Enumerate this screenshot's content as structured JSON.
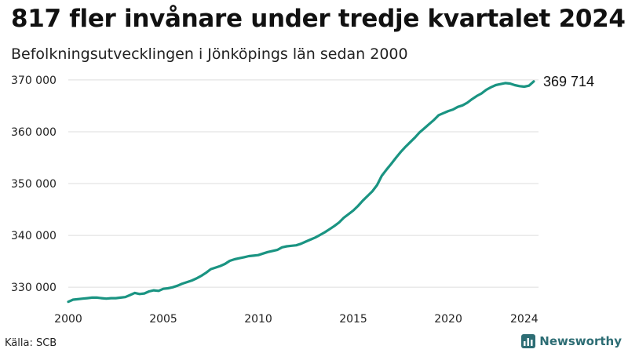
{
  "title": "817 fler invånare under tredje kvartalet 2024",
  "subtitle": "Befolkningsutvecklingen i Jönköpings län sedan 2000",
  "source": "Källa: SCB",
  "brand": "Newsworthy",
  "chart_data": {
    "type": "line",
    "series_color": "#1a9482",
    "xlim": [
      2000,
      2024.75
    ],
    "ylim": [
      327000,
      371500
    ],
    "xticks": [
      2000,
      2005,
      2010,
      2015,
      2020,
      2024
    ],
    "yticks": [
      330000,
      340000,
      350000,
      360000,
      370000
    ],
    "ytick_labels": [
      "330 000",
      "340 000",
      "350 000",
      "360 000",
      "370 000"
    ],
    "grid": "horizontal",
    "end_label": "369 714",
    "series": [
      {
        "x": [
          2000.0,
          2000.25,
          2000.5,
          2000.75,
          2001.0,
          2001.25,
          2001.5,
          2001.75,
          2002.0,
          2002.25,
          2002.5,
          2002.75,
          2003.0,
          2003.25,
          2003.5,
          2003.75,
          2004.0,
          2004.25,
          2004.5,
          2004.75,
          2005.0,
          2005.25,
          2005.5,
          2005.75,
          2006.0,
          2006.25,
          2006.5,
          2006.75,
          2007.0,
          2007.25,
          2007.5,
          2007.75,
          2008.0,
          2008.25,
          2008.5,
          2008.75,
          2009.0,
          2009.25,
          2009.5,
          2009.75,
          2010.0,
          2010.25,
          2010.5,
          2010.75,
          2011.0,
          2011.25,
          2011.5,
          2011.75,
          2012.0,
          2012.25,
          2012.5,
          2012.75,
          2013.0,
          2013.25,
          2013.5,
          2013.75,
          2014.0,
          2014.25,
          2014.5,
          2014.75,
          2015.0,
          2015.25,
          2015.5,
          2015.75,
          2016.0,
          2016.25,
          2016.5,
          2016.75,
          2017.0,
          2017.25,
          2017.5,
          2017.75,
          2018.0,
          2018.25,
          2018.5,
          2018.75,
          2019.0,
          2019.25,
          2019.5,
          2019.75,
          2020.0,
          2020.25,
          2020.5,
          2020.75,
          2021.0,
          2021.25,
          2021.5,
          2021.75,
          2022.0,
          2022.25,
          2022.5,
          2022.75,
          2023.0,
          2023.25,
          2023.5,
          2023.75,
          2024.0,
          2024.25,
          2024.5
        ],
        "y": [
          327200,
          327600,
          327700,
          327800,
          327900,
          328000,
          328000,
          327900,
          327800,
          327900,
          327900,
          328000,
          328100,
          328500,
          328900,
          328700,
          328800,
          329200,
          329400,
          329300,
          329700,
          329800,
          330000,
          330300,
          330700,
          331000,
          331300,
          331700,
          332200,
          332800,
          333500,
          333800,
          334100,
          334500,
          335100,
          335400,
          335600,
          335800,
          336000,
          336100,
          336200,
          336500,
          336800,
          337000,
          337200,
          337700,
          337900,
          338000,
          338100,
          338400,
          338800,
          339200,
          339600,
          340100,
          340600,
          341200,
          341800,
          342500,
          343400,
          344100,
          344800,
          345700,
          346700,
          347600,
          348500,
          349700,
          351500,
          352700,
          353800,
          355000,
          356100,
          357100,
          358000,
          358900,
          359900,
          360700,
          361500,
          362300,
          363200,
          363600,
          364000,
          364300,
          364800,
          365100,
          365600,
          366300,
          366900,
          367400,
          368100,
          368600,
          369000,
          369200,
          369400,
          369300,
          369000,
          368800,
          368700,
          368900,
          369714
        ]
      }
    ]
  }
}
